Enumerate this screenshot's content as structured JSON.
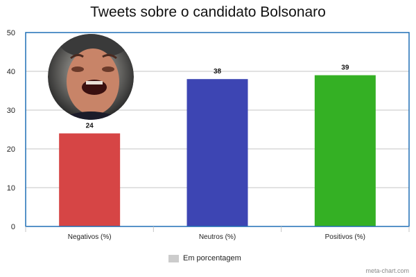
{
  "chart_data": {
    "type": "bar",
    "title": "Tweets sobre o candidato Bolsonaro",
    "xlabel": "",
    "ylabel": "",
    "categories": [
      "Negativos (%)",
      "Neutros (%)",
      "Positivos (%)"
    ],
    "series": [
      {
        "name": "Em porcentagem",
        "values": [
          24,
          38,
          39
        ]
      }
    ],
    "bar_colors": [
      "#d64545",
      "#3d45b3",
      "#34b024"
    ],
    "ylim": [
      0,
      50
    ],
    "yticks": [
      0,
      10,
      20,
      30,
      40,
      50
    ],
    "grid": true,
    "legend_position": "bottom-center",
    "frame_color": "#1f6fb5"
  },
  "legend": {
    "swatch_color": "#cccccc"
  },
  "credit": "meta-chart.com"
}
